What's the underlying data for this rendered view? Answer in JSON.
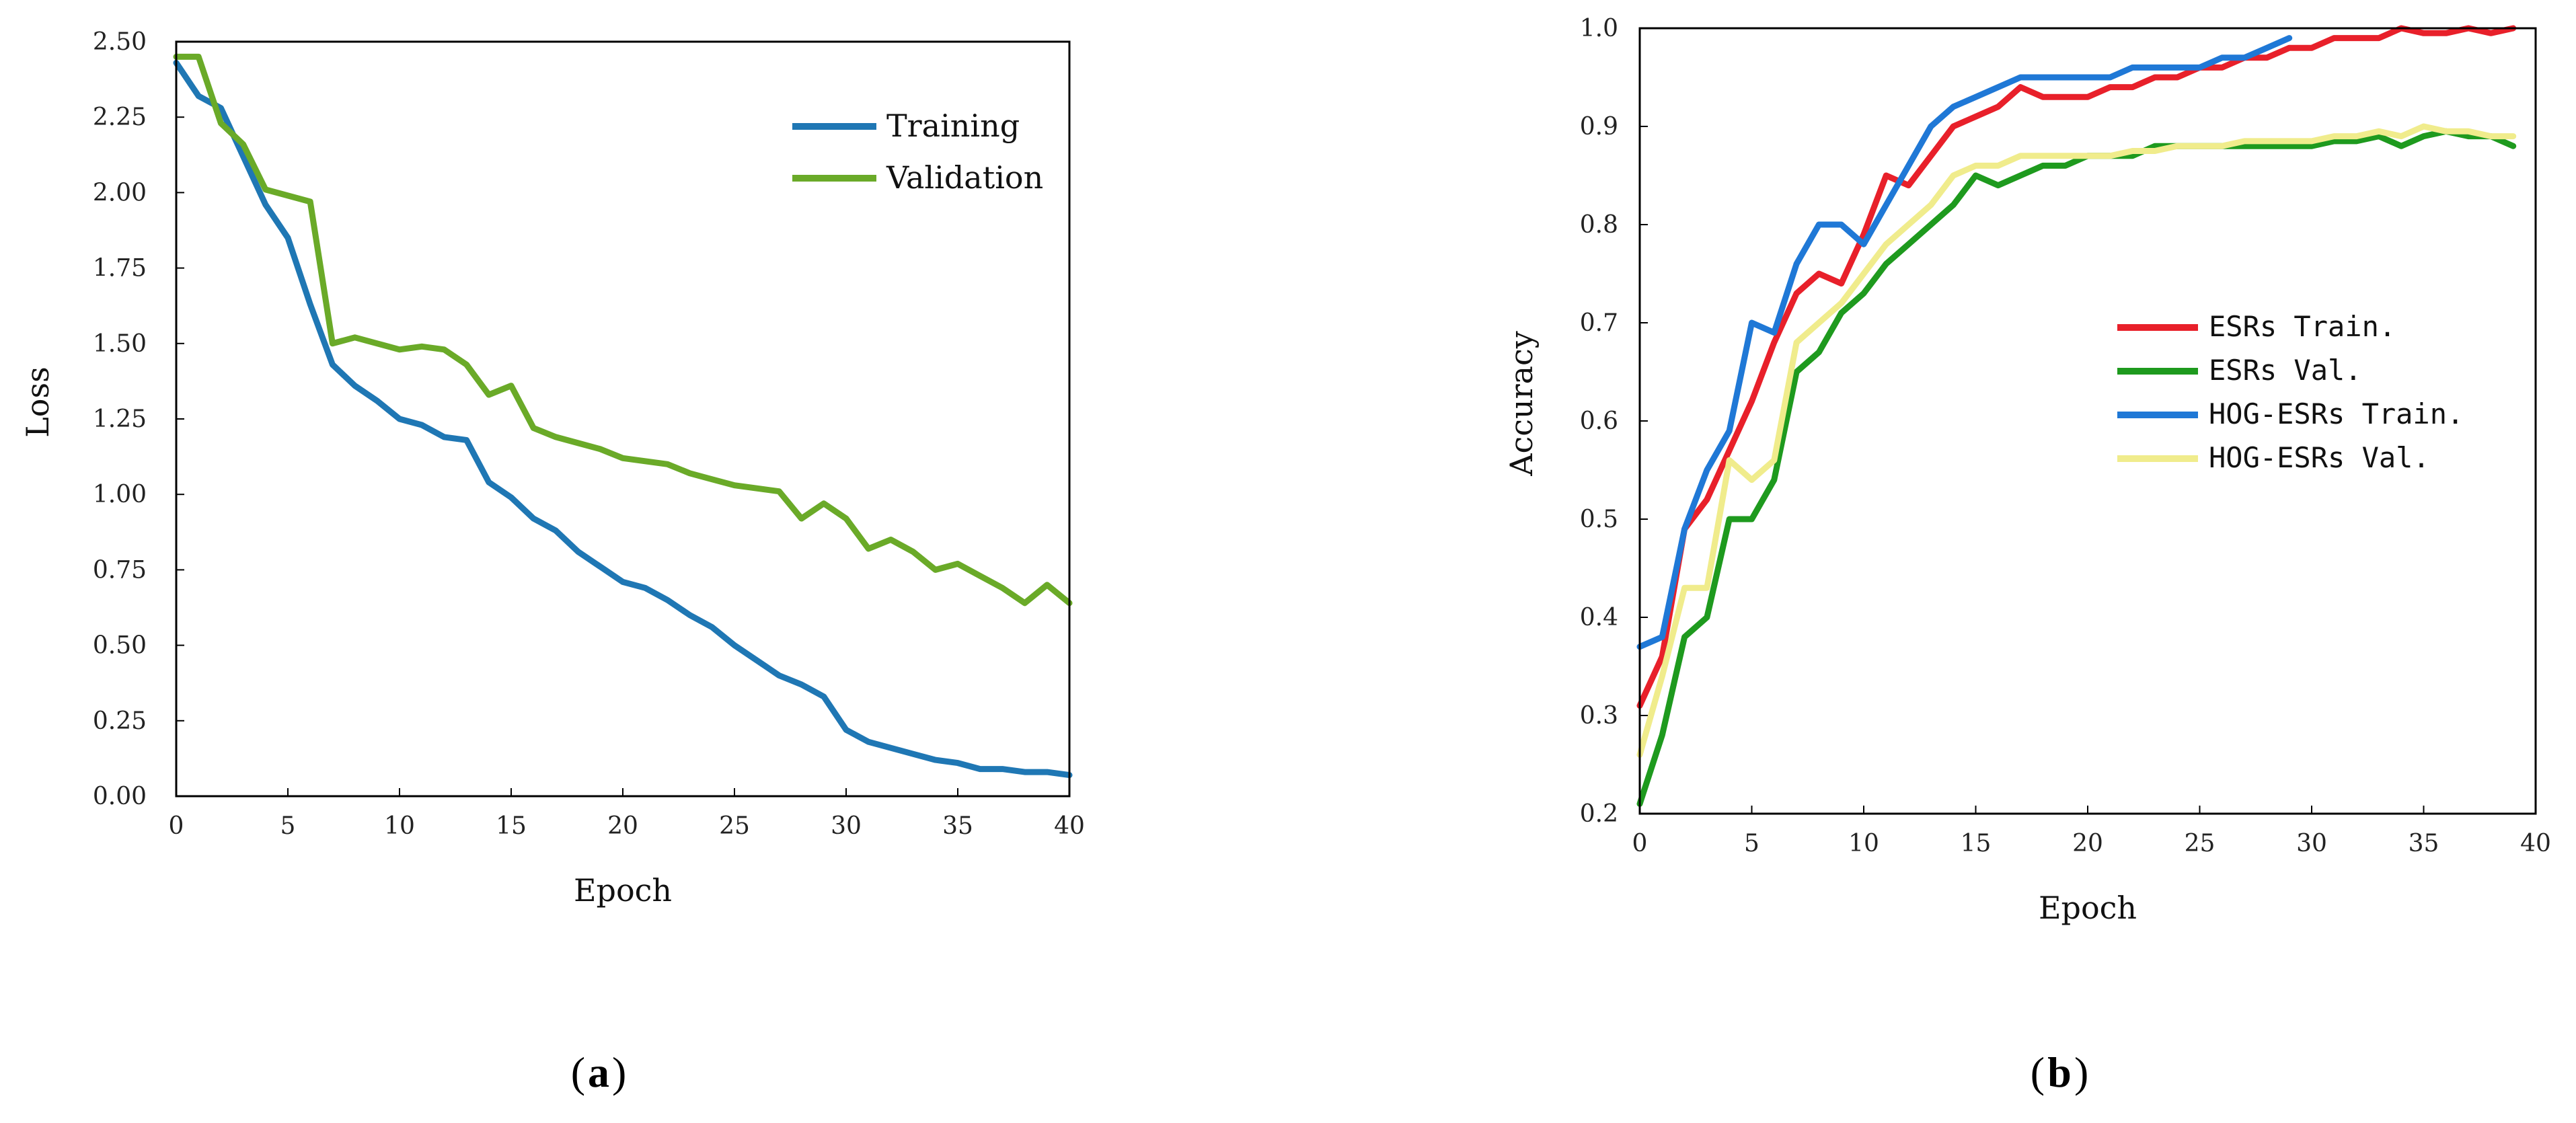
{
  "chart_data": [
    {
      "type": "line",
      "caption_letter": "a",
      "xlabel": "Epoch",
      "ylabel": "Loss",
      "xlim": [
        0,
        40
      ],
      "ylim": [
        0,
        2.5
      ],
      "xticks": [
        "0",
        "5",
        "10",
        "15",
        "20",
        "25",
        "30",
        "35",
        "40"
      ],
      "yticks": [
        "0.00",
        "0.25",
        "0.50",
        "0.75",
        "1.00",
        "1.25",
        "1.50",
        "1.75",
        "2.00",
        "2.25",
        "2.50"
      ],
      "legend_position": "top-right",
      "series": [
        {
          "name": "Training",
          "color": "#1f77b4",
          "x": [
            0,
            1,
            2,
            3,
            4,
            5,
            6,
            7,
            8,
            9,
            10,
            11,
            12,
            13,
            14,
            15,
            16,
            17,
            18,
            19,
            20,
            21,
            22,
            23,
            24,
            25,
            26,
            27,
            28,
            29,
            30,
            31,
            32,
            33,
            34,
            35,
            36,
            37,
            38,
            39,
            40
          ],
          "values": [
            2.43,
            2.32,
            2.28,
            2.12,
            1.96,
            1.85,
            1.63,
            1.43,
            1.36,
            1.31,
            1.25,
            1.23,
            1.19,
            1.18,
            1.04,
            0.99,
            0.92,
            0.88,
            0.81,
            0.76,
            0.71,
            0.69,
            0.65,
            0.6,
            0.56,
            0.5,
            0.45,
            0.4,
            0.37,
            0.33,
            0.22,
            0.18,
            0.16,
            0.14,
            0.12,
            0.11,
            0.09,
            0.09,
            0.08,
            0.08,
            0.07
          ]
        },
        {
          "name": "Validation",
          "color": "#6aaa28",
          "x": [
            0,
            1,
            2,
            3,
            4,
            5,
            6,
            7,
            8,
            9,
            10,
            11,
            12,
            13,
            14,
            15,
            16,
            17,
            18,
            19,
            20,
            21,
            22,
            23,
            24,
            25,
            26,
            27,
            28,
            29,
            30,
            31,
            32,
            33,
            34,
            35,
            36,
            37,
            38,
            39,
            40
          ],
          "values": [
            2.45,
            2.45,
            2.23,
            2.16,
            2.01,
            1.99,
            1.97,
            1.5,
            1.52,
            1.5,
            1.48,
            1.49,
            1.48,
            1.43,
            1.33,
            1.36,
            1.22,
            1.19,
            1.17,
            1.15,
            1.12,
            1.11,
            1.1,
            1.07,
            1.05,
            1.03,
            1.02,
            1.01,
            0.92,
            0.97,
            0.92,
            0.82,
            0.85,
            0.81,
            0.75,
            0.77,
            0.73,
            0.69,
            0.64,
            0.7,
            0.64
          ]
        }
      ]
    },
    {
      "type": "line",
      "caption_letter": "b",
      "xlabel": "Epoch",
      "ylabel": "Accuracy",
      "xlim": [
        0,
        40
      ],
      "ylim": [
        0.2,
        1.0
      ],
      "xticks": [
        "0",
        "5",
        "10",
        "15",
        "20",
        "25",
        "30",
        "35",
        "40"
      ],
      "yticks": [
        "0.2",
        "0.3",
        "0.4",
        "0.5",
        "0.6",
        "0.7",
        "0.8",
        "0.9",
        "1.0"
      ],
      "legend_position": "center-right",
      "series": [
        {
          "name": "ESRs Train.",
          "color": "#e8202a",
          "x": [
            0,
            1,
            2,
            3,
            4,
            5,
            6,
            7,
            8,
            9,
            10,
            11,
            12,
            13,
            14,
            15,
            16,
            17,
            18,
            19,
            20,
            21,
            22,
            23,
            24,
            25,
            26,
            27,
            28,
            29,
            30,
            31,
            32,
            33,
            34,
            35,
            36,
            37,
            38,
            39
          ],
          "values": [
            0.31,
            0.36,
            0.49,
            0.52,
            0.57,
            0.62,
            0.68,
            0.73,
            0.75,
            0.74,
            0.79,
            0.85,
            0.84,
            0.87,
            0.9,
            0.91,
            0.92,
            0.94,
            0.93,
            0.93,
            0.93,
            0.94,
            0.94,
            0.95,
            0.95,
            0.96,
            0.96,
            0.97,
            0.97,
            0.98,
            0.98,
            0.99,
            0.99,
            0.99,
            1.0,
            0.995,
            0.995,
            1.0,
            0.995,
            1.0
          ]
        },
        {
          "name": "ESRs Val.",
          "color": "#1e9a1e",
          "x": [
            0,
            1,
            2,
            3,
            4,
            5,
            6,
            7,
            8,
            9,
            10,
            11,
            12,
            13,
            14,
            15,
            16,
            17,
            18,
            19,
            20,
            21,
            22,
            23,
            24,
            25,
            26,
            27,
            28,
            29,
            30,
            31,
            32,
            33,
            34,
            35,
            36,
            37,
            38,
            39
          ],
          "values": [
            0.21,
            0.28,
            0.38,
            0.4,
            0.5,
            0.5,
            0.54,
            0.65,
            0.67,
            0.71,
            0.73,
            0.76,
            0.78,
            0.8,
            0.82,
            0.85,
            0.84,
            0.85,
            0.86,
            0.86,
            0.87,
            0.87,
            0.87,
            0.88,
            0.88,
            0.88,
            0.88,
            0.88,
            0.88,
            0.88,
            0.88,
            0.885,
            0.885,
            0.89,
            0.88,
            0.89,
            0.895,
            0.89,
            0.89,
            0.88
          ]
        },
        {
          "name": "HOG-ESRs Train.",
          "color": "#1f78d6",
          "x": [
            0,
            1,
            2,
            3,
            4,
            5,
            6,
            7,
            8,
            9,
            10,
            11,
            12,
            13,
            14,
            15,
            16,
            17,
            18,
            19,
            20,
            21,
            22,
            23,
            24,
            25,
            26,
            27,
            28,
            29
          ],
          "values": [
            0.37,
            0.38,
            0.49,
            0.55,
            0.59,
            0.7,
            0.69,
            0.76,
            0.8,
            0.8,
            0.78,
            0.82,
            0.86,
            0.9,
            0.92,
            0.93,
            0.94,
            0.95,
            0.95,
            0.95,
            0.95,
            0.95,
            0.96,
            0.96,
            0.96,
            0.96,
            0.97,
            0.97,
            0.98,
            0.99
          ]
        },
        {
          "name": "HOG-ESRs Val.",
          "color": "#f0ec8c",
          "x": [
            0,
            1,
            2,
            3,
            4,
            5,
            6,
            7,
            8,
            9,
            10,
            11,
            12,
            13,
            14,
            15,
            16,
            17,
            18,
            19,
            20,
            21,
            22,
            23,
            24,
            25,
            26,
            27,
            28,
            29,
            30,
            31,
            32,
            33,
            34,
            35,
            36,
            37,
            38,
            39
          ],
          "values": [
            0.26,
            0.34,
            0.43,
            0.43,
            0.56,
            0.54,
            0.56,
            0.68,
            0.7,
            0.72,
            0.75,
            0.78,
            0.8,
            0.82,
            0.85,
            0.86,
            0.86,
            0.87,
            0.87,
            0.87,
            0.87,
            0.87,
            0.875,
            0.875,
            0.88,
            0.88,
            0.88,
            0.885,
            0.885,
            0.885,
            0.885,
            0.89,
            0.89,
            0.895,
            0.89,
            0.9,
            0.895,
            0.895,
            0.89,
            0.89
          ]
        }
      ]
    }
  ]
}
